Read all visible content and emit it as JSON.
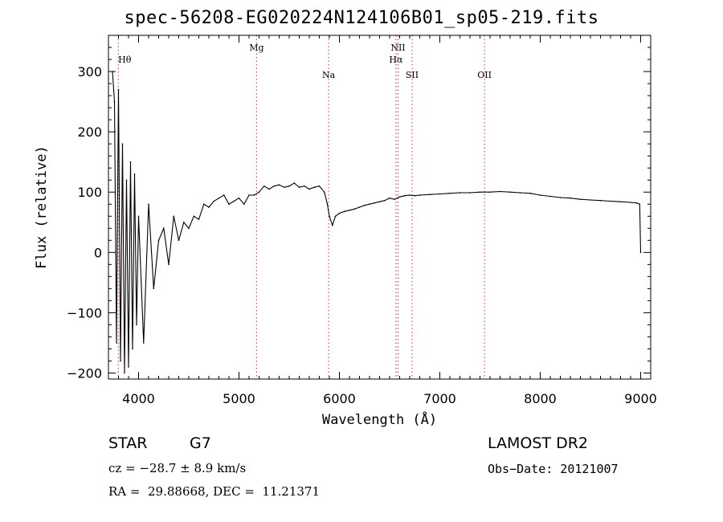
{
  "chart_data": {
    "type": "line",
    "title": "spec-56208-EG020224N124106B01_sp05-219.fits",
    "xlabel": "Wavelength (Å)",
    "ylabel": "Flux (relative)",
    "xlim": [
      3700,
      9100
    ],
    "ylim": [
      -210,
      360
    ],
    "xticks": [
      4000,
      5000,
      6000,
      7000,
      8000,
      9000
    ],
    "yticks": [
      -200,
      -100,
      0,
      100,
      200,
      300
    ],
    "grid": false,
    "line_color": "#000000",
    "marker_color": "#cc3333",
    "lines": [
      {
        "name": "Hθ",
        "wavelength": 3798
      },
      {
        "name": "Mg",
        "wavelength": 5175
      },
      {
        "name": "Na",
        "wavelength": 5893
      },
      {
        "name": "NII",
        "wavelength": 6584
      },
      {
        "name": "Hα",
        "wavelength": 6563
      },
      {
        "name": "SII",
        "wavelength": 6724
      },
      {
        "name": "OII",
        "wavelength": 7445
      }
    ],
    "series": [
      {
        "x": [
          3740,
          3760,
          3780,
          3800,
          3820,
          3840,
          3860,
          3880,
          3900,
          3920,
          3940,
          3960,
          3980,
          4000,
          4050,
          4100,
          4150,
          4200,
          4250,
          4300,
          4350,
          4400,
          4450,
          4500,
          4550,
          4600,
          4650,
          4700,
          4750,
          4800,
          4850,
          4900,
          4950,
          5000,
          5050,
          5100,
          5150,
          5200,
          5250,
          5300,
          5350,
          5400,
          5450,
          5500,
          5550,
          5600,
          5650,
          5700,
          5750,
          5800,
          5850,
          5880,
          5900,
          5930,
          5960,
          6000,
          6050,
          6100,
          6150,
          6200,
          6250,
          6300,
          6350,
          6400,
          6450,
          6500,
          6550,
          6600,
          6650,
          6700,
          6750,
          6800,
          6900,
          7000,
          7100,
          7200,
          7300,
          7400,
          7500,
          7600,
          7700,
          7800,
          7900,
          8000,
          8100,
          8200,
          8300,
          8400,
          8500,
          8600,
          8700,
          8800,
          8900,
          8960,
          8990,
          9000
        ],
        "y": [
          300,
          250,
          -150,
          270,
          -180,
          180,
          -200,
          120,
          -190,
          150,
          -160,
          130,
          -120,
          60,
          -150,
          80,
          -60,
          20,
          40,
          -20,
          60,
          20,
          50,
          40,
          60,
          55,
          80,
          75,
          85,
          90,
          95,
          80,
          85,
          90,
          80,
          95,
          95,
          100,
          110,
          105,
          110,
          112,
          108,
          110,
          115,
          108,
          110,
          105,
          108,
          110,
          100,
          80,
          60,
          45,
          60,
          65,
          68,
          70,
          72,
          75,
          78,
          80,
          82,
          84,
          86,
          90,
          88,
          92,
          94,
          95,
          94,
          95,
          96,
          97,
          98,
          99,
          99,
          100,
          100,
          101,
          100,
          99,
          98,
          95,
          93,
          91,
          90,
          88,
          87,
          86,
          85,
          84,
          83,
          82,
          80,
          0
        ]
      }
    ]
  },
  "info": {
    "object_class": "STAR",
    "subclass": "G7",
    "cz": "cz = −28.7 ± 8.9 km/s",
    "radec": "RA =  29.88668, DEC =  11.21371",
    "survey": "LAMOST DR2",
    "obs_date": "Obs−Date: 20121007"
  }
}
